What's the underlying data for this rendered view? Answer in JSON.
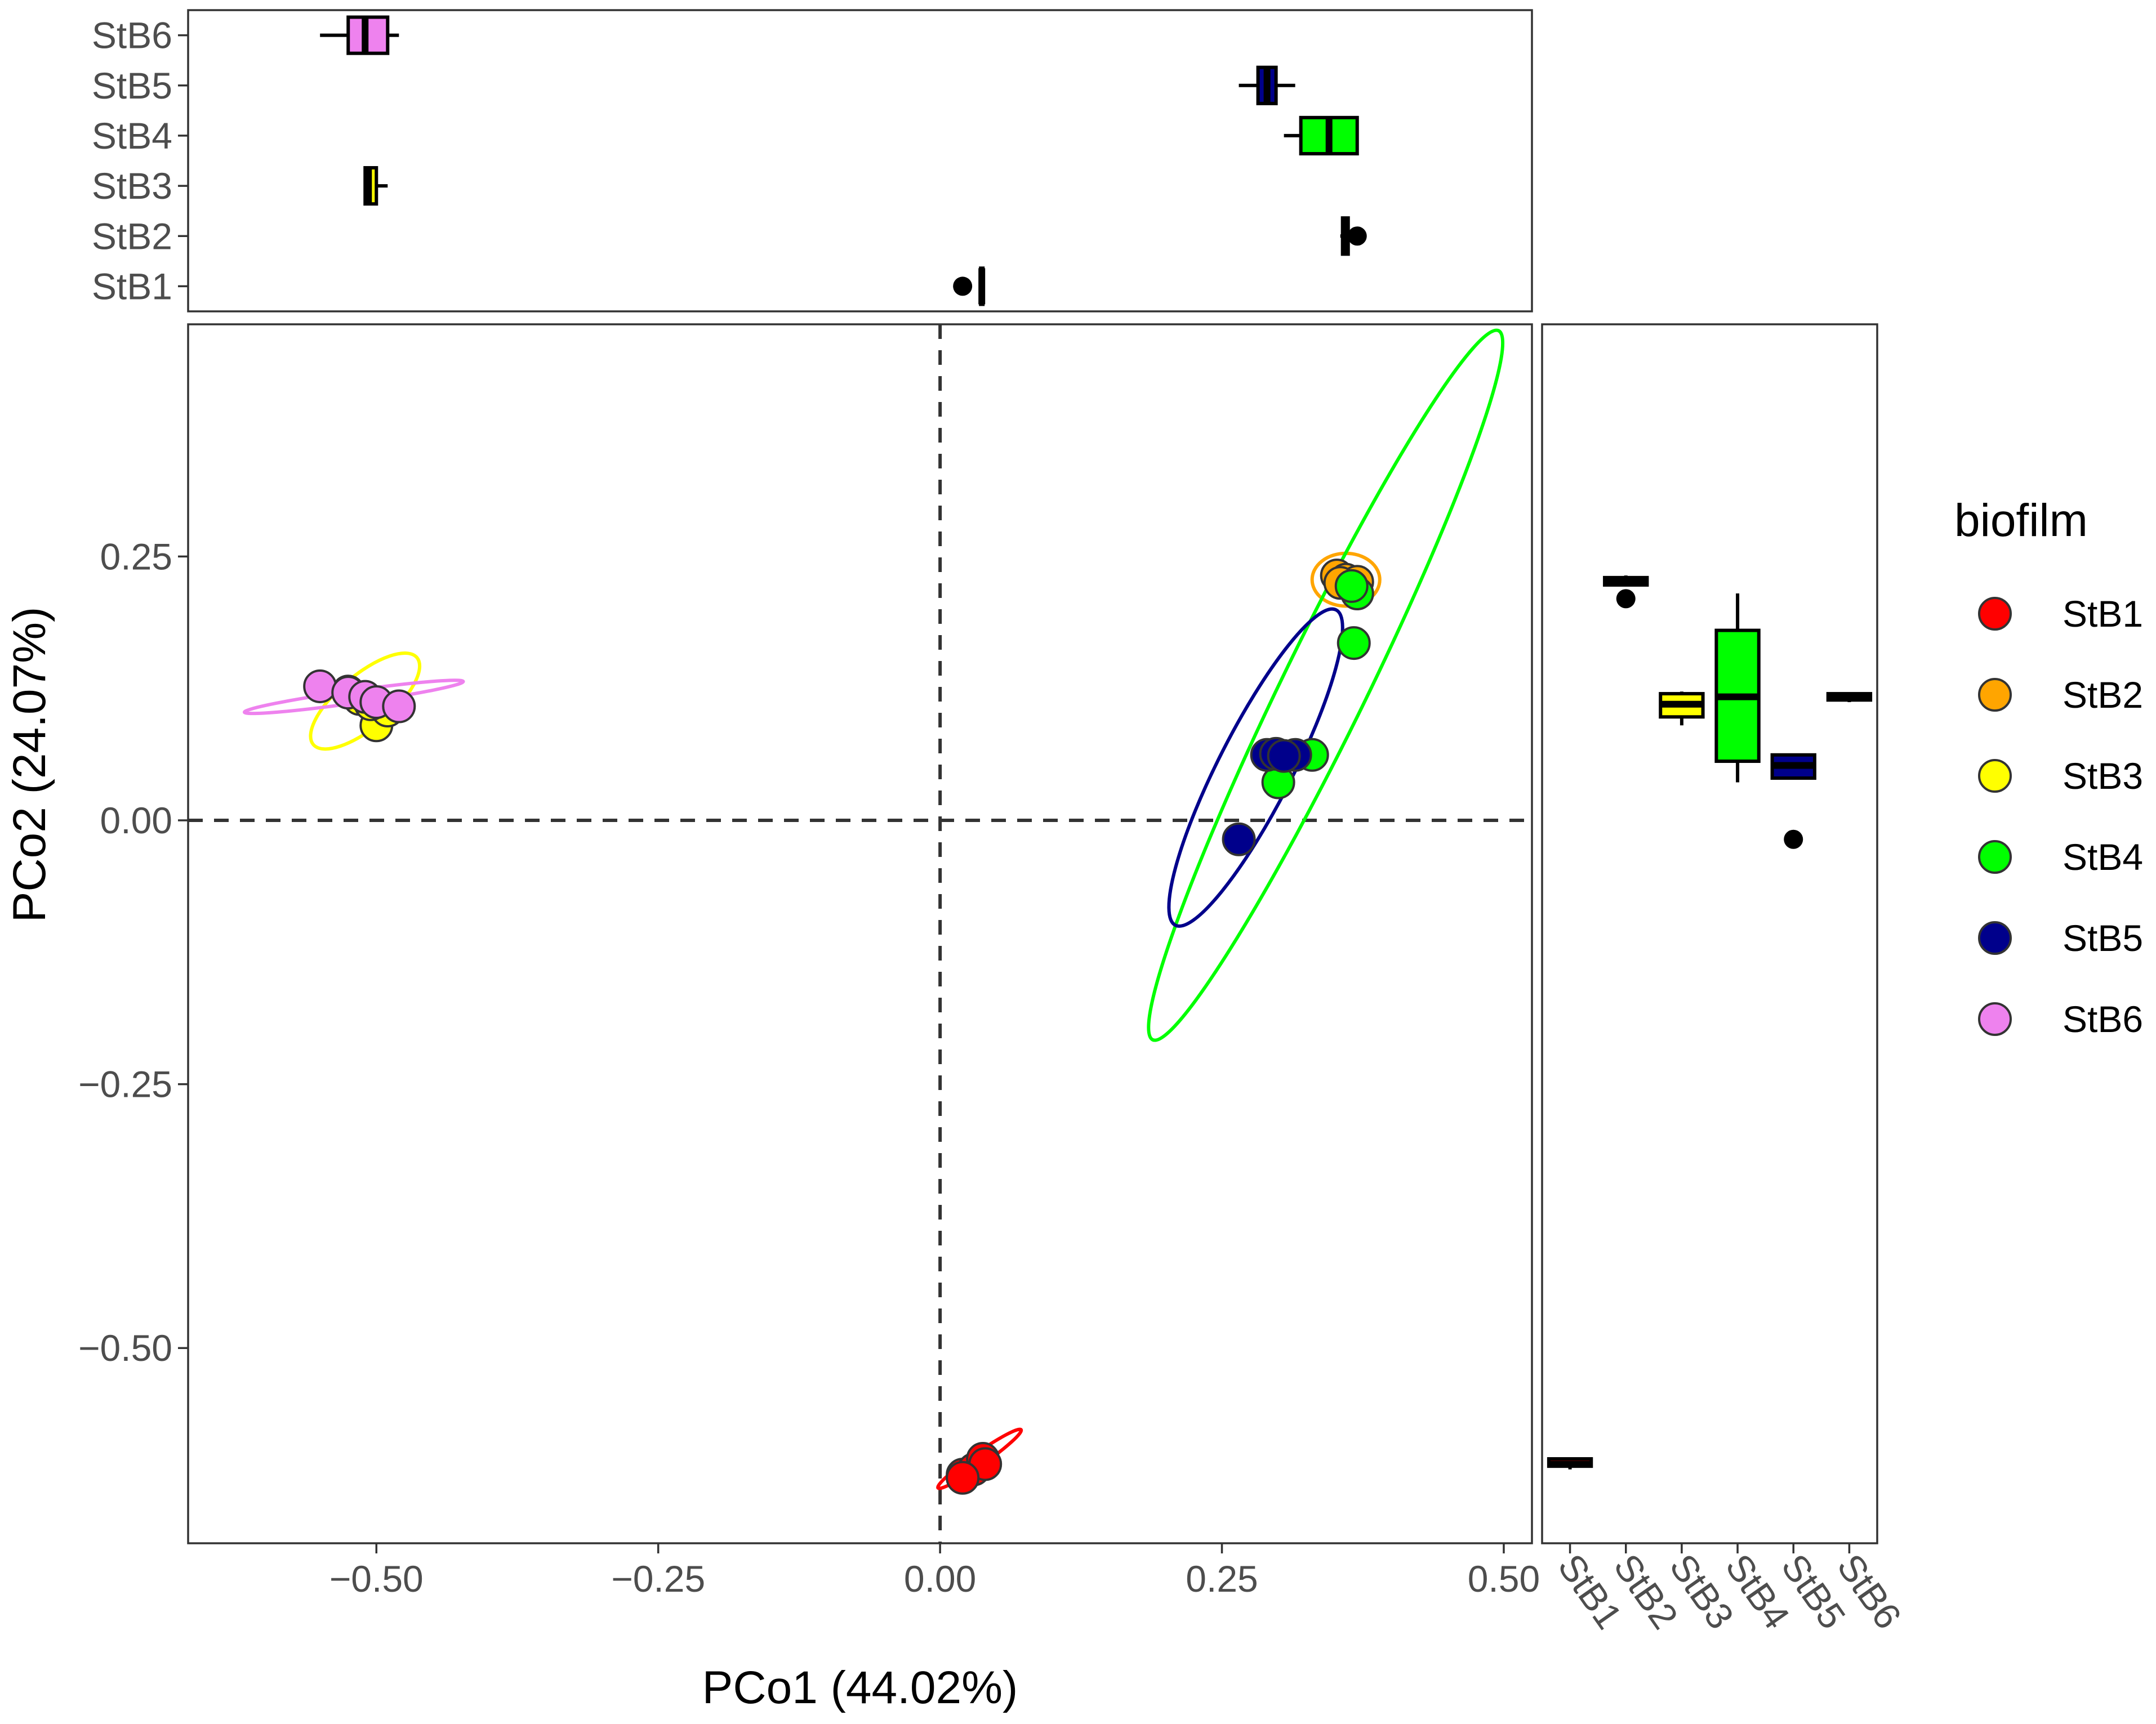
{
  "chart_data": {
    "type": "scatter",
    "title": "",
    "xlabel": "PCo1 (44.02%)",
    "ylabel": "PCo2 (24.07%)",
    "xlim": [
      -0.667,
      0.525
    ],
    "ylim": [
      -0.685,
      0.47
    ],
    "x_ticks": [
      -0.5,
      -0.25,
      0.0,
      0.25,
      0.5
    ],
    "x_tick_labels": [
      "−0.50",
      "−0.25",
      "0.00",
      "0.25",
      "0.50"
    ],
    "y_ticks": [
      0.25,
      0.0,
      -0.25,
      -0.5
    ],
    "y_tick_labels": [
      "0.25",
      "0.00",
      "−0.25",
      "−0.50"
    ],
    "reference_lines": {
      "x": 0,
      "y": 0
    },
    "legend": {
      "title": "biofilm",
      "placement": "right"
    },
    "series": [
      {
        "name": "StB1",
        "color": "#ff0000",
        "points": [
          [
            0.02,
            -0.62
          ],
          [
            0.03,
            -0.615
          ],
          [
            0.038,
            -0.605
          ],
          [
            0.04,
            -0.61
          ],
          [
            0.02,
            -0.623
          ]
        ],
        "ellipse": {
          "center": [
            0.035,
            -0.605
          ],
          "rx": 0.045,
          "ry": 0.006,
          "angle_deg": 35
        }
      },
      {
        "name": "StB2",
        "color": "#ffa500",
        "points": [
          [
            0.352,
            0.232
          ],
          [
            0.36,
            0.228
          ],
          [
            0.37,
            0.226
          ],
          [
            0.365,
            0.222
          ],
          [
            0.355,
            0.225
          ]
        ],
        "ellipse": {
          "center": [
            0.36,
            0.228
          ],
          "rx": 0.03,
          "ry": 0.025,
          "angle_deg": 0
        }
      },
      {
        "name": "StB3",
        "color": "#ffff00",
        "points": [
          [
            -0.5,
            0.09
          ],
          [
            -0.515,
            0.115
          ],
          [
            -0.525,
            0.122
          ],
          [
            -0.49,
            0.104
          ],
          [
            -0.505,
            0.11
          ]
        ],
        "ellipse": {
          "center": [
            -0.51,
            0.113
          ],
          "rx": 0.06,
          "ry": 0.025,
          "angle_deg": 40
        }
      },
      {
        "name": "StB4",
        "color": "#00ff00",
        "points": [
          [
            0.37,
            0.215
          ],
          [
            0.367,
            0.168
          ],
          [
            0.33,
            0.062
          ],
          [
            0.3,
            0.036
          ],
          [
            0.365,
            0.222
          ]
        ],
        "ellipse": {
          "center": [
            0.342,
            0.128
          ],
          "rx": 0.35,
          "ry": 0.04,
          "angle_deg": 64
        }
      },
      {
        "name": "StB5",
        "color": "#00008b",
        "points": [
          [
            0.265,
            -0.018
          ],
          [
            0.29,
            0.062
          ],
          [
            0.298,
            0.063
          ],
          [
            0.315,
            0.062
          ],
          [
            0.305,
            0.061
          ]
        ],
        "ellipse": {
          "center": [
            0.28,
            0.05
          ],
          "rx": 0.157,
          "ry": 0.035,
          "angle_deg": 63
        }
      },
      {
        "name": "StB6",
        "color": "#ee82ee",
        "points": [
          [
            -0.55,
            0.127
          ],
          [
            -0.525,
            0.121
          ],
          [
            -0.51,
            0.117
          ],
          [
            -0.5,
            0.112
          ],
          [
            -0.48,
            0.108
          ]
        ],
        "ellipse": {
          "center": [
            -0.52,
            0.117
          ],
          "rx": 0.098,
          "ry": 0.006,
          "angle_deg": 8
        }
      }
    ],
    "top_boxplot": {
      "orientation": "horizontal",
      "axis": "PCo1",
      "categories": [
        "StB1",
        "StB2",
        "StB3",
        "StB4",
        "StB5",
        "StB6"
      ],
      "boxes": [
        {
          "name": "StB1",
          "min": 0.036,
          "q1": 0.036,
          "median": 0.037,
          "q3": 0.038,
          "max": 0.038,
          "outliers": [
            0.02
          ],
          "fill": "#ff0000"
        },
        {
          "name": "StB2",
          "min": 0.355,
          "q1": 0.357,
          "median": 0.36,
          "q3": 0.362,
          "max": 0.365,
          "outliers": [
            0.37
          ],
          "fill": "#ffa500"
        },
        {
          "name": "StB3",
          "min": -0.511,
          "q1": -0.51,
          "median": -0.507,
          "q3": -0.5,
          "max": -0.49,
          "outliers": [],
          "fill": "#ffff00"
        },
        {
          "name": "StB4",
          "min": 0.305,
          "q1": 0.32,
          "median": 0.345,
          "q3": 0.37,
          "max": 0.37,
          "outliers": [],
          "fill": "#00ff00"
        },
        {
          "name": "StB5",
          "min": 0.265,
          "q1": 0.282,
          "median": 0.29,
          "q3": 0.298,
          "max": 0.315,
          "outliers": [],
          "fill": "#00008b"
        },
        {
          "name": "StB6",
          "min": -0.55,
          "q1": -0.525,
          "median": -0.51,
          "q3": -0.49,
          "max": -0.48,
          "outliers": [],
          "fill": "#ee82ee"
        }
      ]
    },
    "right_boxplot": {
      "orientation": "vertical",
      "axis": "PCo2",
      "categories": [
        "StB1",
        "StB2",
        "StB3",
        "StB4",
        "StB5",
        "StB6"
      ],
      "boxes": [
        {
          "name": "StB1",
          "min": -0.615,
          "q1": -0.612,
          "median": -0.61,
          "q3": -0.605,
          "max": -0.605,
          "outliers": [],
          "fill": "#ff0000"
        },
        {
          "name": "StB2",
          "min": 0.222,
          "q1": 0.223,
          "median": 0.226,
          "q3": 0.23,
          "max": 0.232,
          "outliers": [
            0.21
          ],
          "fill": "#ffa500"
        },
        {
          "name": "StB3",
          "min": 0.09,
          "q1": 0.098,
          "median": 0.11,
          "q3": 0.12,
          "max": 0.122,
          "outliers": [],
          "fill": "#ffff00"
        },
        {
          "name": "StB4",
          "min": 0.036,
          "q1": 0.056,
          "median": 0.117,
          "q3": 0.18,
          "max": 0.215,
          "outliers": [],
          "fill": "#00ff00"
        },
        {
          "name": "StB5",
          "min": 0.04,
          "q1": 0.04,
          "median": 0.052,
          "q3": 0.062,
          "max": 0.063,
          "outliers": [
            -0.018
          ],
          "fill": "#00008b"
        },
        {
          "name": "StB6",
          "min": 0.112,
          "q1": 0.114,
          "median": 0.117,
          "q3": 0.12,
          "max": 0.121,
          "outliers": [],
          "fill": "#ee82ee"
        }
      ]
    }
  }
}
